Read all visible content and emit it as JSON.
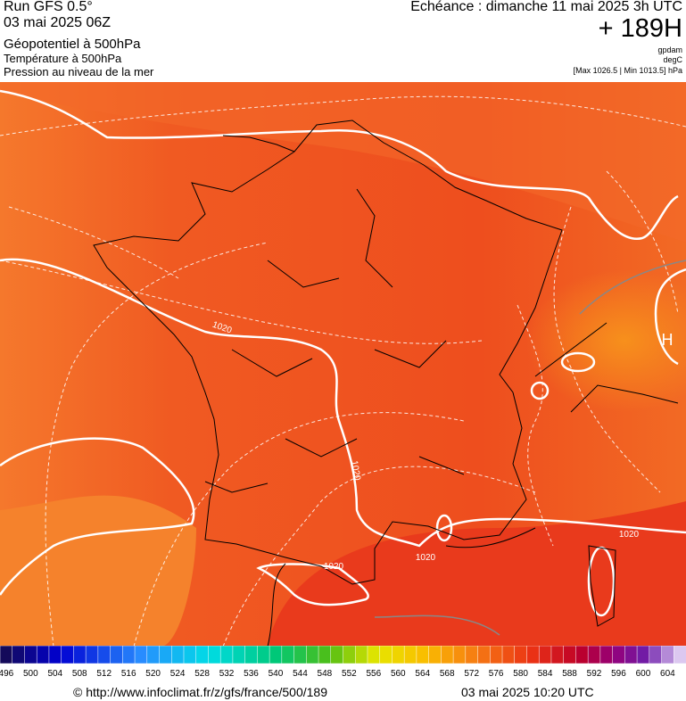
{
  "header": {
    "run": "Run GFS 0.5°",
    "date": "03 mai 2025 06Z",
    "field1": "Géopotentiel à 500hPa",
    "field2": "Température à 500hPa",
    "field3": "Pression au niveau de la mer",
    "echeance": "Echéance : dimanche 11 mai 2025 3h UTC",
    "hour": "+ 189H",
    "unit1": "gpdam",
    "unit2": "degC",
    "unit3": "[Max 1026.5 | Min 1013.5] hPa"
  },
  "map": {
    "contour_labels": [
      "1020",
      "1020",
      "1020",
      "1020",
      "1020"
    ],
    "high_label": "H"
  },
  "colorbar": {
    "ticks": [
      496,
      500,
      504,
      508,
      512,
      516,
      520,
      524,
      528,
      532,
      536,
      540,
      544,
      548,
      552,
      556,
      560,
      564,
      568,
      572,
      576,
      580,
      584,
      588,
      592,
      596,
      600,
      604
    ]
  },
  "footer": {
    "url": "© http://www.infoclimat.fr/z/gfs/france/500/189",
    "timestamp": "03 mai 2025 10:20 UTC"
  }
}
